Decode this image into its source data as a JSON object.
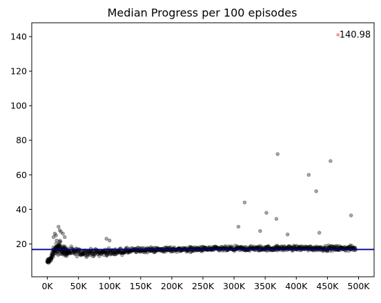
{
  "chart_data": {
    "type": "scatter",
    "title": "Median Progress per 100 episodes",
    "xlabel": "",
    "ylabel": "",
    "xlim": [
      -25000,
      525000
    ],
    "ylim": [
      1,
      148
    ],
    "x_ticks": [
      {
        "value": 0,
        "label": "0K"
      },
      {
        "value": 50000,
        "label": "50K"
      },
      {
        "value": 100000,
        "label": "100K"
      },
      {
        "value": 150000,
        "label": "150K"
      },
      {
        "value": 200000,
        "label": "200K"
      },
      {
        "value": 250000,
        "label": "250K"
      },
      {
        "value": 300000,
        "label": "300K"
      },
      {
        "value": 350000,
        "label": "350K"
      },
      {
        "value": 400000,
        "label": "400K"
      },
      {
        "value": 450000,
        "label": "450K"
      },
      {
        "value": 500000,
        "label": "500K"
      }
    ],
    "y_ticks": [
      {
        "value": 20,
        "label": "20"
      },
      {
        "value": 40,
        "label": "40"
      },
      {
        "value": 60,
        "label": "60"
      },
      {
        "value": 80,
        "label": "80"
      },
      {
        "value": 100,
        "label": "100"
      },
      {
        "value": 120,
        "label": "120"
      },
      {
        "value": 140,
        "label": "140"
      }
    ],
    "grid": false,
    "legend": "none",
    "point_color": "#000000",
    "max_point_color": "#f08080",
    "hline_color": "#00008b",
    "hline_value": 16.8,
    "max_point": {
      "x": 467000,
      "y": 140.98,
      "label": "140.98"
    },
    "outliers": [
      {
        "x": 10000,
        "y": 24
      },
      {
        "x": 12000,
        "y": 26
      },
      {
        "x": 14000,
        "y": 25
      },
      {
        "x": 15000,
        "y": 22
      },
      {
        "x": 18000,
        "y": 30
      },
      {
        "x": 20000,
        "y": 28
      },
      {
        "x": 22000,
        "y": 27
      },
      {
        "x": 25000,
        "y": 26
      },
      {
        "x": 28000,
        "y": 24
      },
      {
        "x": 95000,
        "y": 23
      },
      {
        "x": 100000,
        "y": 22
      },
      {
        "x": 307000,
        "y": 30
      },
      {
        "x": 317000,
        "y": 44
      },
      {
        "x": 342000,
        "y": 27.5
      },
      {
        "x": 352000,
        "y": 38
      },
      {
        "x": 368000,
        "y": 34.5
      },
      {
        "x": 370000,
        "y": 72
      },
      {
        "x": 386000,
        "y": 25.5
      },
      {
        "x": 420000,
        "y": 60
      },
      {
        "x": 432000,
        "y": 50.5
      },
      {
        "x": 437000,
        "y": 26.5
      },
      {
        "x": 455000,
        "y": 68
      },
      {
        "x": 488000,
        "y": 36.5
      }
    ],
    "dense_series": {
      "x_start": 0,
      "x_end": 495000,
      "x_step": 1000,
      "segments": [
        {
          "x": 0,
          "center": 9.5,
          "spread": 1.5
        },
        {
          "x": 5000,
          "center": 11,
          "spread": 2
        },
        {
          "x": 10000,
          "center": 16,
          "spread": 3
        },
        {
          "x": 20000,
          "center": 18,
          "spread": 4
        },
        {
          "x": 30000,
          "center": 15.5,
          "spread": 2.5
        },
        {
          "x": 60000,
          "center": 15,
          "spread": 2
        },
        {
          "x": 100000,
          "center": 15.2,
          "spread": 1.8
        },
        {
          "x": 150000,
          "center": 16.5,
          "spread": 1.5
        },
        {
          "x": 200000,
          "center": 16.8,
          "spread": 1.4
        },
        {
          "x": 300000,
          "center": 17.2,
          "spread": 1.4
        },
        {
          "x": 400000,
          "center": 17.6,
          "spread": 1.4
        },
        {
          "x": 495000,
          "center": 17.4,
          "spread": 1.4
        }
      ]
    }
  }
}
